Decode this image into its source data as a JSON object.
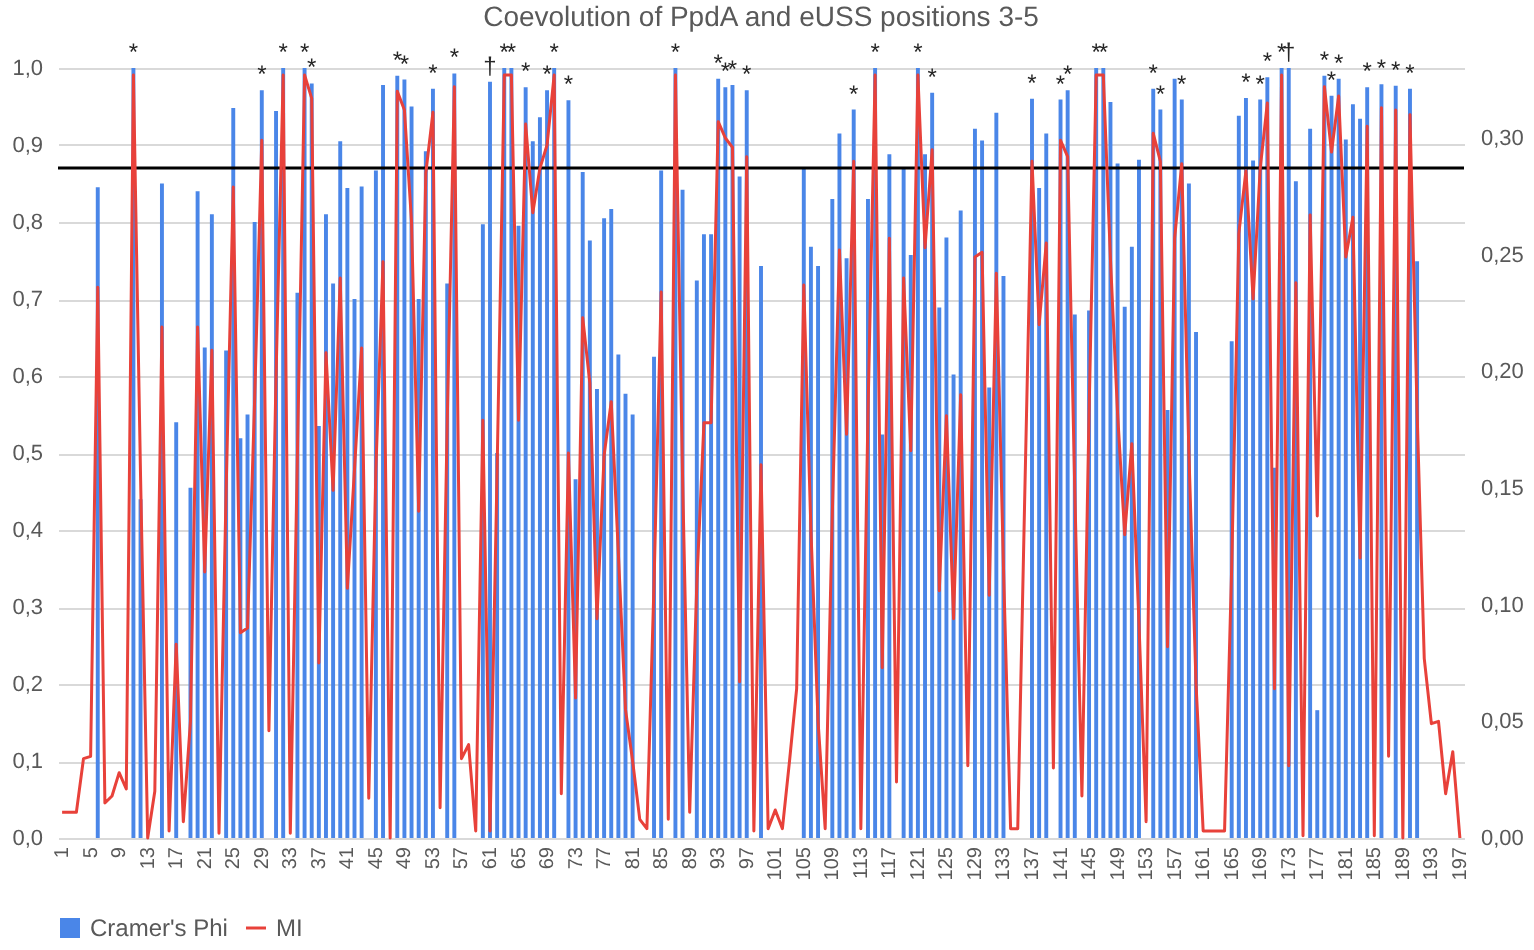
{
  "chart_data": {
    "type": "bar",
    "title": "Coevolution of PpdA and eUSS positions 3-5",
    "categories": [
      "1",
      null,
      null,
      null,
      "5",
      null,
      null,
      null,
      "9",
      null,
      null,
      null,
      "13",
      null,
      null,
      null,
      "17",
      null,
      null,
      null,
      "21",
      null,
      null,
      null,
      "25",
      null,
      null,
      null,
      "29",
      null,
      null,
      null,
      "33",
      null,
      null,
      null,
      "37",
      null,
      null,
      null,
      "41",
      null,
      null,
      null,
      "45",
      null,
      null,
      null,
      "49",
      null,
      null,
      null,
      "53",
      null,
      null,
      null,
      "57",
      null,
      null,
      null,
      "61",
      null,
      null,
      null,
      "65",
      null,
      null,
      null,
      "69",
      null,
      null,
      null,
      "73",
      null,
      null,
      null,
      "77",
      null,
      null,
      null,
      "81",
      null,
      null,
      null,
      "85",
      null,
      null,
      null,
      "89",
      null,
      null,
      null,
      "93",
      null,
      null,
      null,
      "97",
      null,
      null,
      null,
      "101",
      null,
      null,
      null,
      "105",
      null,
      null,
      null,
      "109",
      null,
      null,
      null,
      "113",
      null,
      null,
      null,
      "117",
      null,
      null,
      null,
      "121",
      null,
      null,
      null,
      "125",
      null,
      null,
      null,
      "129",
      null,
      null,
      null,
      "133",
      null,
      null,
      null,
      "137",
      null,
      null,
      null,
      "141",
      null,
      null,
      null,
      "145",
      null,
      null,
      null,
      "149",
      null,
      null,
      null,
      "153",
      null,
      null,
      null,
      "157",
      null,
      null,
      null,
      "161",
      null,
      null,
      null,
      "165",
      null,
      null,
      null,
      "169",
      null,
      null,
      null,
      "173",
      null,
      null,
      null,
      "177",
      null,
      null,
      null,
      "181",
      null,
      null,
      null,
      "185",
      null,
      null,
      null,
      "189",
      null,
      null,
      null,
      "193",
      null,
      null,
      null,
      "197"
    ],
    "series": [
      {
        "name": "Cramer's Phi",
        "color": "#4a86e8",
        "values": [
          null,
          null,
          null,
          null,
          null,
          0.845,
          null,
          null,
          null,
          null,
          1.0,
          0.44,
          null,
          null,
          0.85,
          null,
          0.54,
          null,
          0.455,
          0.84,
          0.637,
          0.81,
          null,
          0.633,
          0.948,
          0.519,
          0.55,
          0.8,
          0.971,
          null,
          0.944,
          1.0,
          null,
          0.708,
          1.0,
          0.98,
          0.535,
          0.81,
          0.72,
          0.905,
          0.844,
          0.7,
          0.846,
          null,
          0.867,
          0.978,
          null,
          0.99,
          0.985,
          0.95,
          0.7,
          0.892,
          0.973,
          null,
          0.72,
          0.993,
          null,
          null,
          null,
          0.797,
          0.982,
          0.5,
          1.0,
          1.0,
          0.795,
          0.975,
          0.905,
          0.936,
          0.971,
          1.0,
          null,
          0.958,
          0.466,
          0.865,
          0.776,
          0.583,
          0.805,
          0.817,
          0.628,
          0.577,
          0.55,
          null,
          null,
          0.625,
          0.867,
          null,
          1.0,
          0.842,
          null,
          0.724,
          0.784,
          0.784,
          0.986,
          0.975,
          0.978,
          0.859,
          0.971,
          null,
          0.743,
          null,
          null,
          null,
          null,
          null,
          0.871,
          0.768,
          0.743,
          null,
          0.83,
          0.915,
          0.753,
          0.946,
          null,
          0.83,
          1.0,
          0.524,
          0.888,
          null,
          0.871,
          0.757,
          1.0,
          0.888,
          0.968,
          0.689,
          0.78,
          0.602,
          0.815,
          null,
          0.921,
          0.906,
          0.585,
          0.942,
          0.73,
          null,
          null,
          null,
          0.96,
          0.844,
          0.915,
          null,
          0.959,
          0.971,
          0.68,
          null,
          0.685,
          1.0,
          1.0,
          0.956,
          0.876,
          0.69,
          0.768,
          0.881,
          null,
          0.973,
          0.946,
          0.556,
          0.986,
          0.959,
          0.85,
          0.657,
          null,
          null,
          null,
          null,
          0.645,
          0.938,
          0.961,
          0.88,
          0.959,
          0.988,
          0.481,
          1.0,
          1.0,
          0.853,
          null,
          0.921,
          0.166,
          0.99,
          0.964,
          0.986,
          0.907,
          0.953,
          0.934,
          0.975,
          null,
          0.979,
          null,
          0.977,
          null,
          0.973,
          0.749,
          null,
          null,
          null,
          null,
          null,
          null
        ],
        "value_labels": [
          null,
          null,
          null,
          null,
          null,
          null,
          null,
          null,
          null,
          null,
          "*",
          null,
          null,
          null,
          null,
          null,
          null,
          null,
          null,
          null,
          null,
          null,
          null,
          null,
          null,
          null,
          null,
          null,
          "*",
          null,
          null,
          "*",
          null,
          null,
          "*",
          "*",
          null,
          null,
          null,
          null,
          null,
          null,
          null,
          null,
          null,
          null,
          null,
          "*",
          "*",
          null,
          null,
          null,
          "*",
          null,
          null,
          "*",
          null,
          null,
          null,
          null,
          "†",
          null,
          "*",
          "*",
          null,
          "*",
          null,
          null,
          "*",
          "*",
          null,
          "*",
          null,
          null,
          null,
          null,
          null,
          null,
          null,
          null,
          null,
          null,
          null,
          null,
          null,
          null,
          "*",
          null,
          null,
          null,
          null,
          null,
          "*",
          "*",
          "*",
          null,
          "*",
          null,
          null,
          null,
          null,
          null,
          null,
          null,
          null,
          null,
          null,
          null,
          null,
          null,
          null,
          "*",
          null,
          null,
          "*",
          null,
          null,
          null,
          null,
          null,
          "*",
          null,
          "*",
          null,
          null,
          null,
          null,
          null,
          null,
          null,
          null,
          null,
          null,
          null,
          null,
          null,
          "*",
          null,
          null,
          null,
          "*",
          "*",
          null,
          null,
          null,
          "*",
          "*",
          null,
          null,
          null,
          null,
          null,
          null,
          "*",
          "*",
          null,
          null,
          "*",
          null,
          null,
          null,
          null,
          null,
          null,
          null,
          null,
          "*",
          null,
          "*",
          "*",
          null,
          "*",
          "†",
          null,
          null,
          null,
          null,
          "*",
          "*",
          "*",
          null,
          null,
          null,
          "*",
          null,
          "*",
          null,
          "*",
          null,
          "*",
          null,
          null,
          null,
          null,
          null,
          null,
          null
        ]
      },
      {
        "name": "MI",
        "type": "line",
        "axis": "y2",
        "color": "#e8413a",
        "values": [
          0.011,
          0.011,
          0.011,
          0.034,
          0.035,
          0.236,
          0.015,
          0.018,
          0.028,
          0.021,
          0.327,
          0.155,
          0.0,
          0.02,
          0.219,
          0.003,
          0.083,
          0.007,
          0.05,
          0.219,
          0.114,
          0.209,
          0.002,
          0.149,
          0.279,
          0.088,
          0.09,
          0.188,
          0.299,
          0.046,
          0.198,
          0.327,
          0.002,
          0.165,
          0.327,
          0.317,
          0.075,
          0.208,
          0.149,
          0.24,
          0.107,
          0.158,
          0.21,
          0.017,
          0.158,
          0.247,
          0.0,
          0.32,
          0.312,
          0.264,
          0.14,
          0.285,
          0.311,
          0.013,
          0.178,
          0.322,
          0.034,
          0.04,
          0.003,
          0.179,
          0.003,
          0.158,
          0.327,
          0.327,
          0.179,
          0.306,
          0.268,
          0.287,
          0.297,
          0.327,
          0.019,
          0.165,
          0.06,
          0.223,
          0.195,
          0.094,
          0.164,
          0.187,
          0.122,
          0.055,
          0.033,
          0.008,
          0.004,
          0.109,
          0.234,
          0.008,
          0.327,
          0.155,
          0.011,
          0.109,
          0.178,
          0.178,
          0.307,
          0.3,
          0.296,
          0.067,
          0.292,
          0.003,
          0.16,
          0.004,
          0.012,
          0.004,
          0.033,
          0.064,
          0.237,
          0.132,
          0.05,
          0.004,
          0.139,
          0.252,
          0.173,
          0.29,
          0.004,
          0.182,
          0.327,
          0.073,
          0.257,
          0.024,
          0.24,
          0.166,
          0.327,
          0.253,
          0.295,
          0.106,
          0.181,
          0.094,
          0.19,
          0.031,
          0.249,
          0.251,
          0.104,
          0.242,
          0.116,
          0.004,
          0.004,
          0.149,
          0.29,
          0.22,
          0.255,
          0.03,
          0.299,
          0.292,
          0.149,
          0.018,
          0.182,
          0.327,
          0.327,
          0.248,
          0.182,
          0.13,
          0.169,
          0.092,
          0.007,
          0.302,
          0.29,
          0.082,
          0.257,
          0.289,
          0.165,
          0.066,
          0.003,
          0.003,
          0.003,
          0.003,
          0.116,
          0.259,
          0.286,
          0.231,
          0.287,
          0.315,
          0.064,
          0.327,
          0.031,
          0.238,
          0.001,
          0.267,
          0.138,
          0.322,
          0.294,
          0.318,
          0.249,
          0.266,
          0.12,
          0.305,
          0.001,
          0.313,
          0.035,
          0.312,
          0.0,
          0.31,
          0.182,
          0.077,
          0.049,
          0.05,
          0.019,
          0.037,
          0.0
        ]
      }
    ],
    "ylim": [
      0,
      1
    ],
    "yticks": [
      {
        "value": 0,
        "label": "0,0"
      },
      {
        "value": 0.1,
        "label": "0,1"
      },
      {
        "value": 0.2,
        "label": "0,2"
      },
      {
        "value": 0.3,
        "label": "0,3"
      },
      {
        "value": 0.4,
        "label": "0,4"
      },
      {
        "value": 0.5,
        "label": "0,5"
      },
      {
        "value": 0.6,
        "label": "0,6"
      },
      {
        "value": 0.7,
        "label": "0,7"
      },
      {
        "value": 0.8,
        "label": "0,8"
      },
      {
        "value": 0.9,
        "label": "0,9"
      },
      {
        "value": 1,
        "label": "1,0"
      }
    ],
    "y2lim": [
      0,
      0.33
    ],
    "y2ticks": [
      {
        "value": 0,
        "label": "0,00"
      },
      {
        "value": 0.05,
        "label": "0,05"
      },
      {
        "value": 0.1,
        "label": "0,10"
      },
      {
        "value": 0.15,
        "label": "0,15"
      },
      {
        "value": 0.2,
        "label": "0,20"
      },
      {
        "value": 0.25,
        "label": "0,25"
      },
      {
        "value": 0.3,
        "label": "0,30"
      }
    ],
    "ref_lines": [
      {
        "axis": "y",
        "value": 0.87,
        "color": "#000000"
      }
    ],
    "grid": "y",
    "legend": "bottom"
  }
}
